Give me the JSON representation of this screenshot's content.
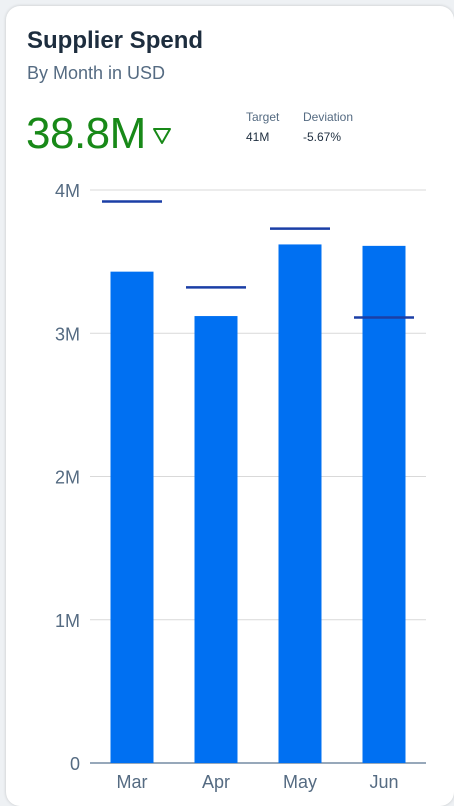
{
  "header": {
    "title": "Supplier Spend",
    "subtitle": "By Month in USD"
  },
  "kpi": {
    "value": "38.8M",
    "trend_icon": "triangle-down-outline-icon",
    "value_color": "#188918"
  },
  "meta": {
    "target_label": "Target",
    "target_value": "41M",
    "deviation_label": "Deviation",
    "deviation_value": "-5.67%"
  },
  "colors": {
    "bar": "#0070f2",
    "target_line": "#1b3fa6",
    "gridline": "#d9d9d9",
    "axis": "#758ca4"
  },
  "chart_data": {
    "type": "bar",
    "title": "",
    "xlabel": "",
    "ylabel": "",
    "categories": [
      "Mar",
      "Apr",
      "May",
      "Jun"
    ],
    "series": [
      {
        "values": [
          3.43,
          3.12,
          3.62,
          3.61
        ]
      },
      {
        "type": "target",
        "values": [
          3.92,
          3.32,
          3.73,
          3.11
        ]
      }
    ],
    "ylim": [
      0,
      4
    ],
    "yticks": [
      0,
      1,
      2,
      3,
      4
    ],
    "ytick_labels": [
      "0",
      "1M",
      "2M",
      "3M",
      "4M"
    ],
    "units": "millions USD",
    "grid": true
  }
}
